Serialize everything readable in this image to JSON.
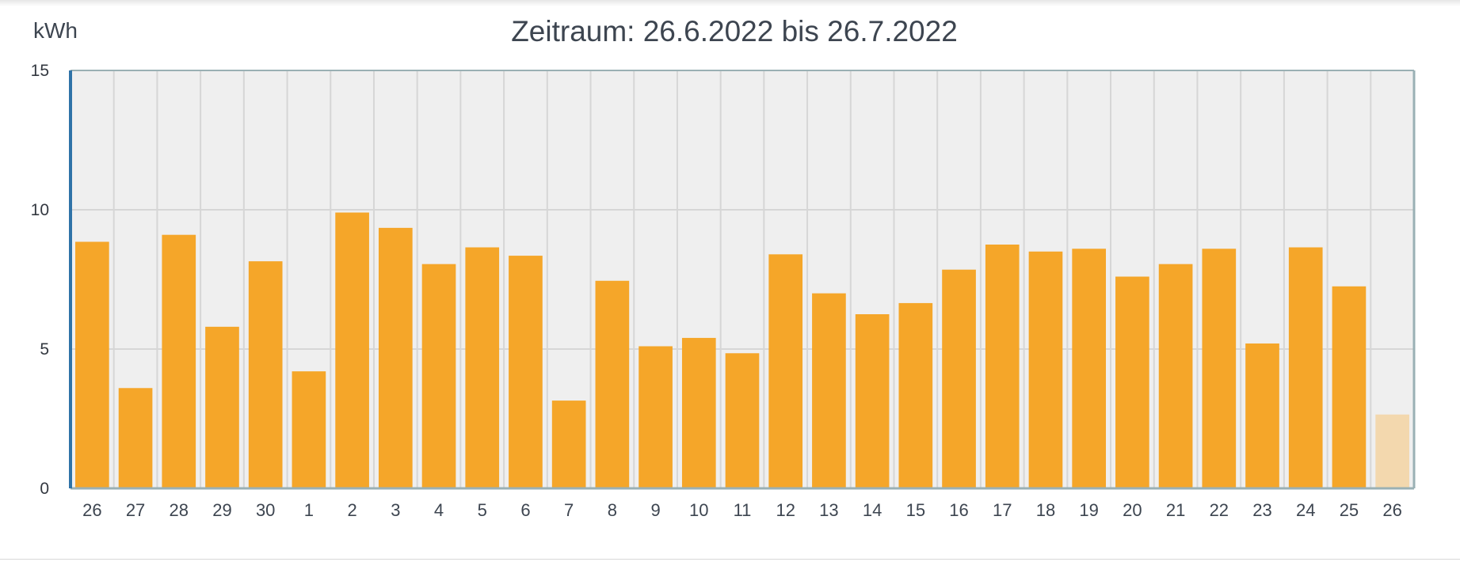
{
  "chart_data": {
    "type": "bar",
    "title": "Zeitraum: 26.6.2022 bis 26.7.2022",
    "ylabel": "kWh",
    "xlabel": "",
    "ylim": [
      0,
      15
    ],
    "yticks": [
      "0",
      "5",
      "10",
      "15"
    ],
    "grid": true,
    "legend": "none",
    "categories": [
      "26",
      "27",
      "28",
      "29",
      "30",
      "1",
      "2",
      "3",
      "4",
      "5",
      "6",
      "7",
      "8",
      "9",
      "10",
      "11",
      "12",
      "13",
      "14",
      "15",
      "16",
      "17",
      "18",
      "19",
      "20",
      "21",
      "22",
      "23",
      "24",
      "25",
      "26"
    ],
    "values": [
      8.85,
      3.6,
      9.1,
      5.8,
      8.15,
      4.2,
      9.9,
      9.35,
      8.05,
      8.65,
      8.35,
      3.15,
      7.45,
      5.1,
      5.4,
      4.85,
      8.4,
      7.0,
      6.25,
      6.65,
      7.85,
      8.75,
      8.5,
      8.6,
      7.6,
      8.05,
      8.6,
      5.2,
      8.65,
      7.25,
      2.65
    ],
    "incomplete_last": true
  },
  "colors": {
    "bar": "#f5a629",
    "bar_partial": "#f3d8ae",
    "plot_bg": "#efefef",
    "grid": "#d6d6d6",
    "y_axis": "#2f73a8",
    "frame": "#9ab0b4"
  }
}
